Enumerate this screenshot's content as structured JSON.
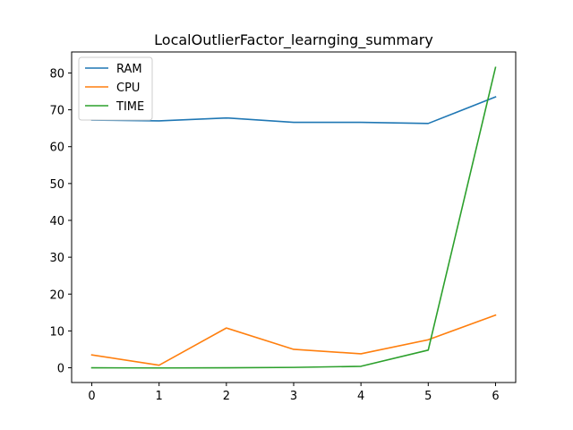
{
  "chart_data": {
    "type": "line",
    "title": "LocalOutlierFactor_learnging_summary",
    "xlabel": "",
    "ylabel": "",
    "x": [
      0,
      1,
      2,
      3,
      4,
      5,
      6
    ],
    "xlim": [
      -0.3,
      6.3
    ],
    "ylim": [
      -4,
      85.7
    ],
    "xticks": [
      0,
      1,
      2,
      3,
      4,
      5,
      6
    ],
    "yticks": [
      0,
      10,
      20,
      30,
      40,
      50,
      60,
      70,
      80
    ],
    "grid": false,
    "legend_position": "top-left",
    "series": [
      {
        "name": "RAM",
        "color": "#1f77b4",
        "values": [
          67.2,
          67.0,
          67.8,
          66.6,
          66.6,
          66.3,
          73.5
        ]
      },
      {
        "name": "CPU",
        "color": "#ff7f0e",
        "values": [
          3.5,
          0.7,
          10.8,
          5.0,
          3.8,
          7.6,
          14.3
        ]
      },
      {
        "name": "TIME",
        "color": "#2ca02c",
        "values": [
          0.0,
          -0.05,
          0.0,
          0.1,
          0.4,
          4.8,
          81.5
        ]
      }
    ]
  }
}
